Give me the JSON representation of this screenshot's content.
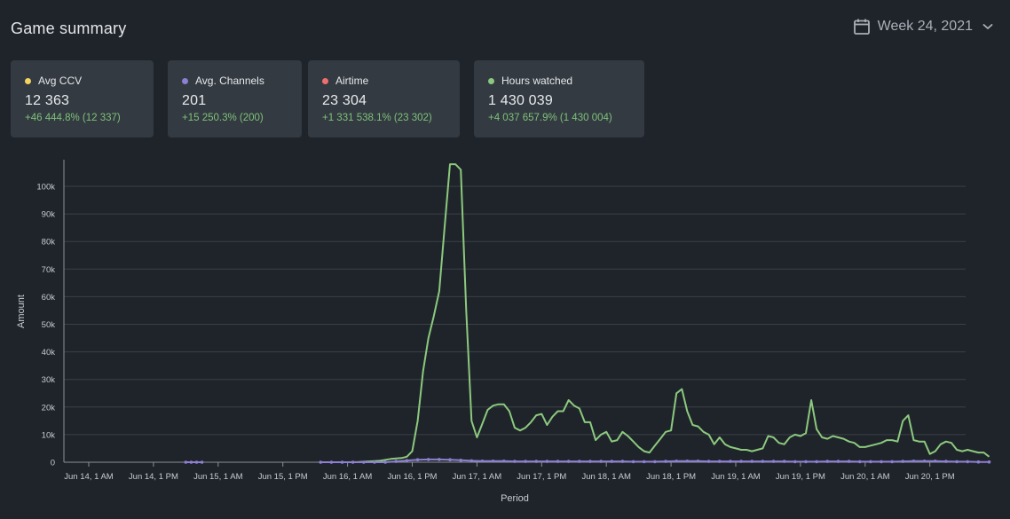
{
  "header": {
    "title": "Game summary",
    "week_label": "Week 24, 2021",
    "calendar_icon": "calendar-icon",
    "dropdown_icon": "chevron-down-icon"
  },
  "cards": [
    {
      "label": "Avg CCV",
      "value": "12 363",
      "delta": "+46 444.8% (12 337)",
      "color": "#f4d35e"
    },
    {
      "label": "Avg. Channels",
      "value": "201",
      "delta": "+15 250.3% (200)",
      "color": "#8d7fd1"
    },
    {
      "label": "Airtime",
      "value": "23 304",
      "delta": "+1 331 538.1% (23 302)",
      "color": "#ef6f6c"
    },
    {
      "label": "Hours watched",
      "value": "1 430 039",
      "delta": "+4 037 657.9% (1 430 004)",
      "color": "#8cc97e"
    }
  ],
  "colors": {
    "delta_positive": "#7fc27a",
    "grid": "#3a4047"
  },
  "chart_data": {
    "type": "line",
    "xlabel": "Period",
    "ylabel": "Amount",
    "ylim": [
      0,
      110000
    ],
    "y_ticks": [
      "0",
      "10k",
      "20k",
      "30k",
      "40k",
      "50k",
      "60k",
      "70k",
      "80k",
      "90k",
      "100k"
    ],
    "x_ticks": [
      "Jun 14, 1 AM",
      "Jun 14, 1 PM",
      "Jun 15, 1 AM",
      "Jun 15, 1 PM",
      "Jun 16, 1 AM",
      "Jun 16, 1 PM",
      "Jun 17, 1 AM",
      "Jun 17, 1 PM",
      "Jun 18, 1 AM",
      "Jun 18, 1 PM",
      "Jun 19, 1 AM",
      "Jun 19, 1 PM",
      "Jun 20, 1 AM",
      "Jun 20, 1 PM"
    ],
    "x_unit": "hours after Jun 14, 1 AM",
    "grid": true,
    "legend": "none",
    "series": [
      {
        "name": "Hours watched",
        "color": "#8cc97e",
        "points": [
          [
            46,
            0
          ],
          [
            48,
            0
          ],
          [
            50,
            100
          ],
          [
            52,
            300
          ],
          [
            54,
            500
          ],
          [
            56,
            1200
          ],
          [
            58,
            1500
          ],
          [
            59,
            2000
          ],
          [
            60,
            4000
          ],
          [
            61,
            15000
          ],
          [
            62,
            33000
          ],
          [
            63,
            45000
          ],
          [
            64,
            53000
          ],
          [
            65,
            62000
          ],
          [
            66,
            85000
          ],
          [
            67,
            108000
          ],
          [
            68,
            108000
          ],
          [
            69,
            106000
          ],
          [
            70,
            55000
          ],
          [
            71,
            15000
          ],
          [
            72,
            9000
          ],
          [
            73,
            14000
          ],
          [
            74,
            19000
          ],
          [
            75,
            20500
          ],
          [
            76,
            21000
          ],
          [
            77,
            21000
          ],
          [
            78,
            18500
          ],
          [
            79,
            12500
          ],
          [
            80,
            11500
          ],
          [
            81,
            12500
          ],
          [
            82,
            14500
          ],
          [
            83,
            17000
          ],
          [
            84,
            17500
          ],
          [
            85,
            13500
          ],
          [
            86,
            16500
          ],
          [
            87,
            18500
          ],
          [
            88,
            18500
          ],
          [
            89,
            22500
          ],
          [
            90,
            20500
          ],
          [
            91,
            19500
          ],
          [
            92,
            14500
          ],
          [
            93,
            14500
          ],
          [
            94,
            8000
          ],
          [
            95,
            10000
          ],
          [
            96,
            11000
          ],
          [
            97,
            7500
          ],
          [
            98,
            8000
          ],
          [
            99,
            11000
          ],
          [
            100,
            9500
          ],
          [
            101,
            7500
          ],
          [
            102,
            5500
          ],
          [
            103,
            4000
          ],
          [
            104,
            3500
          ],
          [
            105,
            6000
          ],
          [
            106,
            8500
          ],
          [
            107,
            11000
          ],
          [
            108,
            11500
          ],
          [
            109,
            25000
          ],
          [
            110,
            26500
          ],
          [
            111,
            18500
          ],
          [
            112,
            13500
          ],
          [
            113,
            13000
          ],
          [
            114,
            11000
          ],
          [
            115,
            10000
          ],
          [
            116,
            6500
          ],
          [
            117,
            9000
          ],
          [
            118,
            6500
          ],
          [
            119,
            5500
          ],
          [
            120,
            5000
          ],
          [
            121,
            4500
          ],
          [
            122,
            4500
          ],
          [
            123,
            4000
          ],
          [
            124,
            4500
          ],
          [
            125,
            5000
          ],
          [
            126,
            9500
          ],
          [
            127,
            9000
          ],
          [
            128,
            7000
          ],
          [
            129,
            6500
          ],
          [
            130,
            9000
          ],
          [
            131,
            10000
          ],
          [
            132,
            9500
          ],
          [
            133,
            10500
          ],
          [
            134,
            22500
          ],
          [
            135,
            12000
          ],
          [
            136,
            9000
          ],
          [
            137,
            8500
          ],
          [
            138,
            9500
          ],
          [
            139,
            9000
          ],
          [
            140,
            8500
          ],
          [
            141,
            7500
          ],
          [
            142,
            7000
          ],
          [
            143,
            5500
          ],
          [
            144,
            5500
          ],
          [
            145,
            6000
          ],
          [
            146,
            6500
          ],
          [
            147,
            7000
          ],
          [
            148,
            8000
          ],
          [
            149,
            8000
          ],
          [
            150,
            7500
          ],
          [
            151,
            15000
          ],
          [
            152,
            17000
          ],
          [
            153,
            8000
          ],
          [
            154,
            7500
          ],
          [
            155,
            7500
          ],
          [
            156,
            3000
          ],
          [
            157,
            4000
          ],
          [
            158,
            6500
          ],
          [
            159,
            7500
          ],
          [
            160,
            7000
          ],
          [
            161,
            4500
          ],
          [
            162,
            4000
          ],
          [
            163,
            4500
          ],
          [
            164,
            4000
          ],
          [
            165,
            3500
          ],
          [
            166,
            3500
          ],
          [
            167,
            2000
          ]
        ]
      },
      {
        "name": "Avg. Channels",
        "color": "#8d7fd1",
        "points": [
          [
            18,
            0
          ],
          [
            19,
            0
          ],
          [
            20,
            0
          ],
          [
            21,
            0
          ],
          [
            43,
            0
          ],
          [
            45,
            0
          ],
          [
            47,
            0
          ],
          [
            49,
            0
          ],
          [
            51,
            0
          ],
          [
            53,
            0
          ],
          [
            55,
            0
          ],
          [
            57,
            300
          ],
          [
            59,
            600
          ],
          [
            61,
            900
          ],
          [
            63,
            1000
          ],
          [
            65,
            1000
          ],
          [
            67,
            900
          ],
          [
            69,
            700
          ],
          [
            71,
            500
          ],
          [
            73,
            400
          ],
          [
            75,
            400
          ],
          [
            77,
            400
          ],
          [
            79,
            300
          ],
          [
            81,
            300
          ],
          [
            83,
            300
          ],
          [
            85,
            300
          ],
          [
            87,
            300
          ],
          [
            89,
            300
          ],
          [
            91,
            300
          ],
          [
            93,
            300
          ],
          [
            95,
            300
          ],
          [
            97,
            300
          ],
          [
            99,
            300
          ],
          [
            101,
            200
          ],
          [
            103,
            200
          ],
          [
            105,
            200
          ],
          [
            107,
            300
          ],
          [
            109,
            400
          ],
          [
            111,
            400
          ],
          [
            113,
            400
          ],
          [
            115,
            300
          ],
          [
            117,
            300
          ],
          [
            119,
            300
          ],
          [
            121,
            300
          ],
          [
            123,
            300
          ],
          [
            125,
            300
          ],
          [
            127,
            300
          ],
          [
            129,
            300
          ],
          [
            131,
            200
          ],
          [
            133,
            200
          ],
          [
            135,
            200
          ],
          [
            137,
            300
          ],
          [
            139,
            300
          ],
          [
            141,
            300
          ],
          [
            143,
            200
          ],
          [
            145,
            200
          ],
          [
            147,
            200
          ],
          [
            149,
            200
          ],
          [
            151,
            300
          ],
          [
            153,
            400
          ],
          [
            155,
            400
          ],
          [
            157,
            400
          ],
          [
            159,
            300
          ],
          [
            161,
            200
          ],
          [
            163,
            200
          ],
          [
            165,
            100
          ],
          [
            167,
            100
          ]
        ]
      }
    ]
  }
}
